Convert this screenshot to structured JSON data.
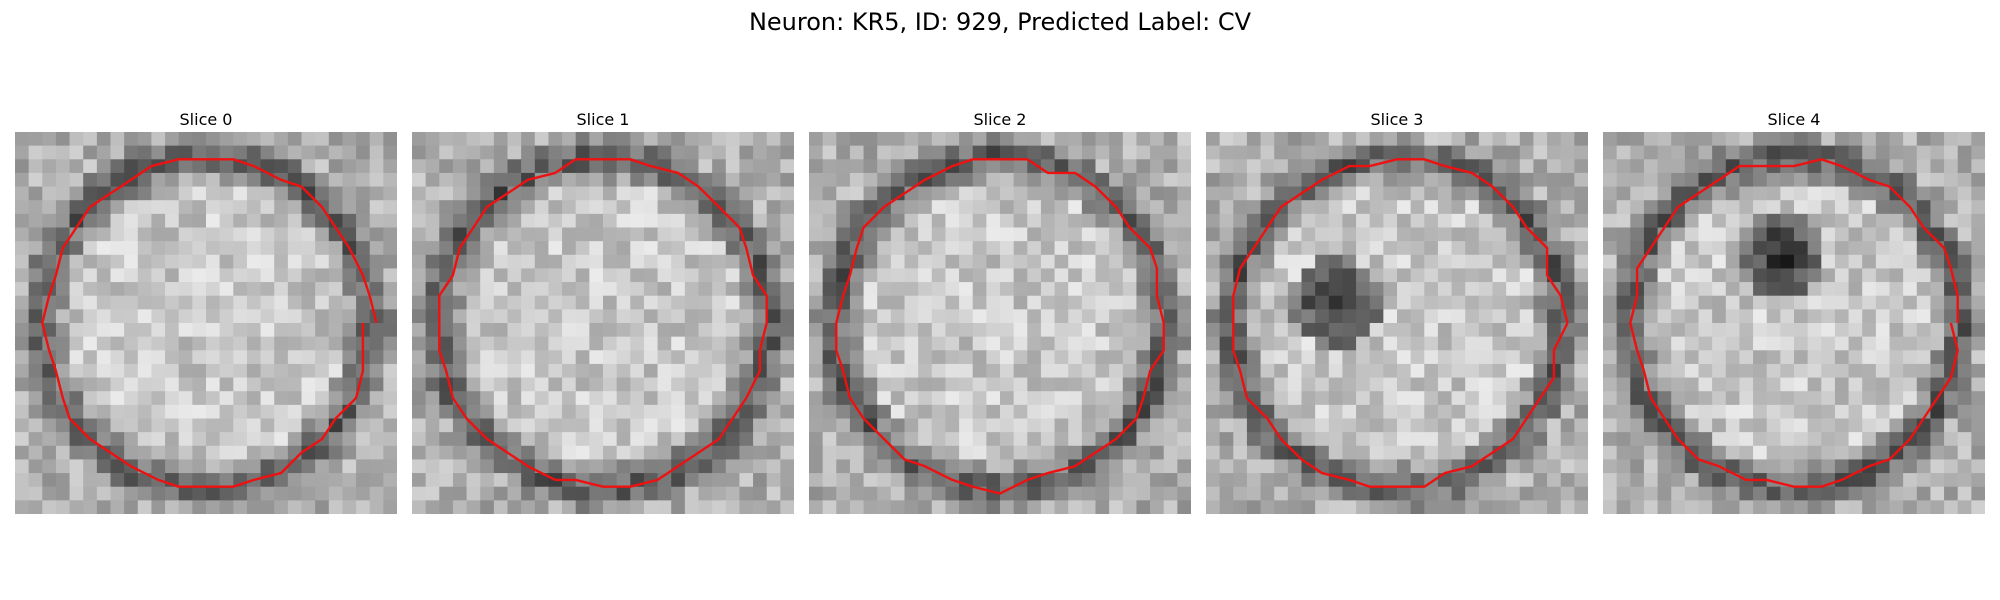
{
  "figure": {
    "title": "Neuron: KR5, ID: 929, Predicted Label: CV"
  },
  "colors": {
    "contour": "#ee1111"
  },
  "slices": [
    {
      "title": "Slice 0",
      "seed": 11,
      "dark_blob": false
    },
    {
      "title": "Slice 1",
      "seed": 23,
      "dark_blob": false
    },
    {
      "title": "Slice 2",
      "seed": 37,
      "dark_blob": false
    },
    {
      "title": "Slice 3",
      "seed": 41,
      "dark_blob": true
    },
    {
      "title": "Slice 4",
      "seed": 53,
      "dark_blob": true
    }
  ]
}
